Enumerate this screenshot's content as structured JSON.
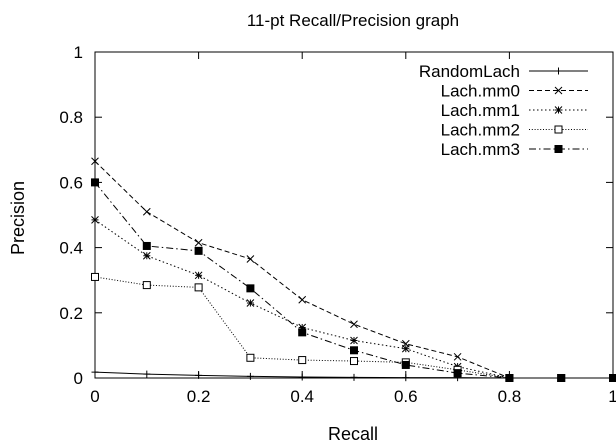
{
  "chart_data": {
    "type": "line",
    "title": "11-pt Recall/Precision graph",
    "xlabel": "Recall",
    "ylabel": "Precision",
    "xlim": [
      0,
      1
    ],
    "ylim": [
      0,
      1
    ],
    "x": [
      0,
      0.1,
      0.2,
      0.3,
      0.4,
      0.5,
      0.6,
      0.7,
      0.8,
      0.9,
      1.0
    ],
    "x_ticks": [
      0,
      0.2,
      0.4,
      0.6,
      0.8,
      1
    ],
    "x_tick_labels": [
      "0",
      "0.2",
      "0.4",
      "0.6",
      "0.8",
      "1"
    ],
    "y_ticks": [
      0,
      0.2,
      0.4,
      0.6,
      0.8,
      1
    ],
    "y_tick_labels": [
      "0",
      "0.2",
      "0.4",
      "0.6",
      "0.8",
      "1"
    ],
    "grid": false,
    "legend_position": "top-right",
    "series": [
      {
        "name": "RandomLach",
        "marker": "plus",
        "dash": "solid",
        "values": [
          0.018,
          0.012,
          0.008,
          0.005,
          0.003,
          0.002,
          0.001,
          0.001,
          0.0,
          0.0,
          0.0
        ]
      },
      {
        "name": "Lach.mm0",
        "marker": "cross",
        "dash": "dashed",
        "values": [
          0.665,
          0.51,
          0.415,
          0.365,
          0.24,
          0.165,
          0.105,
          0.065,
          0.0,
          0.0,
          0.0
        ]
      },
      {
        "name": "Lach.mm1",
        "marker": "star",
        "dash": "dotted",
        "values": [
          0.485,
          0.375,
          0.315,
          0.23,
          0.155,
          0.115,
          0.09,
          0.035,
          0.0,
          0.0,
          0.0
        ]
      },
      {
        "name": "Lach.mm2",
        "marker": "open-square",
        "dash": "fine-dotted",
        "values": [
          0.31,
          0.285,
          0.278,
          0.062,
          0.055,
          0.052,
          0.048,
          0.025,
          0.0,
          0.0,
          0.0
        ]
      },
      {
        "name": "Lach.mm3",
        "marker": "filled-square",
        "dash": "dash-dot",
        "values": [
          0.6,
          0.405,
          0.39,
          0.275,
          0.14,
          0.085,
          0.04,
          0.015,
          0.0,
          0.0,
          0.0
        ]
      }
    ]
  }
}
